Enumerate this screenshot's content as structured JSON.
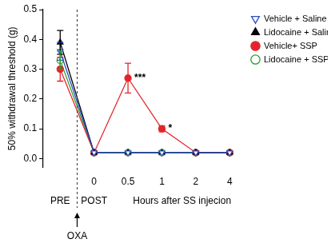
{
  "chart_data": {
    "type": "line",
    "y_label": "50% withdrawal threshold (g)",
    "x_label": "Hours after SS injecion",
    "period_labels": [
      "PRE",
      "POST"
    ],
    "event_label": "OXA",
    "categories": [
      null,
      "0",
      "0.5",
      "1",
      "2",
      "4"
    ],
    "ylim": [
      -0.03,
      0.5
    ],
    "yticks": [
      {
        "value": 0,
        "label": "0.0"
      },
      0.1,
      0.2,
      0.3,
      0.4,
      0.5
    ],
    "grid": false,
    "legend": "right",
    "series": [
      {
        "name": "Vehicle + Saline",
        "color": "#2b4fc4",
        "marker": "triangle-down-open",
        "values": [
          0.36,
          0.02,
          0.02,
          0.02,
          0.02,
          0.02
        ],
        "errors": [
          0.03,
          0,
          0,
          0,
          0,
          0
        ]
      },
      {
        "name": "Lidocaine + Saline",
        "color": "#000000",
        "marker": "triangle",
        "values": [
          0.39,
          0.02,
          0.02,
          0.02,
          0.02,
          0.02
        ],
        "errors": [
          0.04,
          0,
          0,
          0,
          0,
          0
        ]
      },
      {
        "name": "Vehicle+ SSP",
        "color": "#e3262a",
        "marker": "circle",
        "values": [
          0.3,
          0.02,
          0.27,
          0.1,
          0.02,
          0.02
        ],
        "errors": [
          0.04,
          0,
          0.05,
          0.01,
          0,
          0
        ]
      },
      {
        "name": "Lidocaine + SSP",
        "color": "#2ca02c",
        "marker": "circle-open",
        "values": [
          0.33,
          0.02,
          0.02,
          0.02,
          0.02,
          0.02
        ],
        "errors": [
          0.03,
          0,
          0,
          0,
          0,
          0
        ]
      }
    ],
    "annotations": [
      {
        "text": "***",
        "series": "Vehicle+ SSP",
        "category": "0.5"
      },
      {
        "text": "*",
        "series": "Vehicle+ SSP",
        "category": "1"
      }
    ]
  }
}
